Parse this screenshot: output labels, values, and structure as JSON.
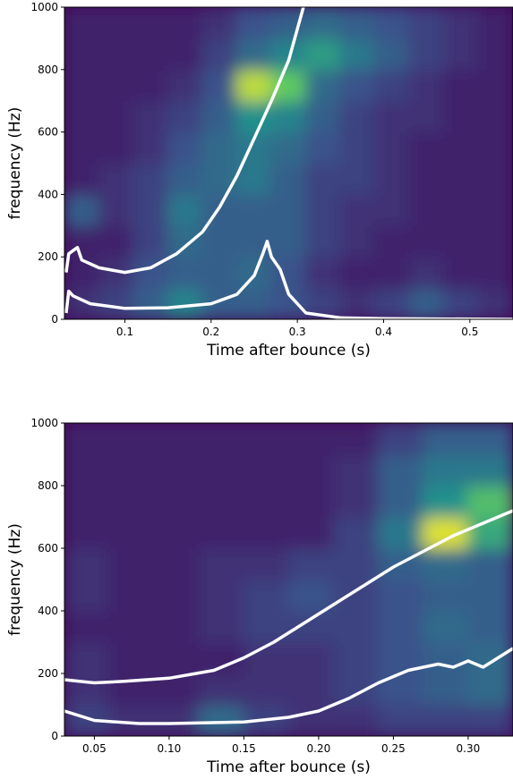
{
  "chart_data": [
    {
      "type": "heatmap",
      "colormap": "viridis",
      "xlabel": "Time after bounce (s)",
      "ylabel": "frequency (Hz)",
      "xlim": [
        0.03,
        0.55
      ],
      "ylim": [
        0,
        1000
      ],
      "xticks": [
        0.1,
        0.2,
        0.3,
        0.4,
        0.5
      ],
      "yticks": [
        0,
        200,
        400,
        600,
        800,
        1000
      ],
      "z": [
        [
          0.15,
          0.2,
          0.3,
          0.45,
          0.3,
          0.3,
          0.25,
          0.2,
          0.15,
          0.2,
          0.3,
          0.2,
          0.15
        ],
        [
          0.1,
          0.15,
          0.25,
          0.3,
          0.3,
          0.35,
          0.25,
          0.15,
          0.1,
          0.1,
          0.15,
          0.1,
          0.1
        ],
        [
          0.1,
          0.1,
          0.2,
          0.35,
          0.3,
          0.3,
          0.3,
          0.2,
          0.15,
          0.1,
          0.1,
          0.1,
          0.1
        ],
        [
          0.3,
          0.15,
          0.2,
          0.4,
          0.3,
          0.3,
          0.3,
          0.2,
          0.15,
          0.15,
          0.1,
          0.1,
          0.1
        ],
        [
          0.1,
          0.15,
          0.2,
          0.3,
          0.35,
          0.4,
          0.3,
          0.2,
          0.2,
          0.15,
          0.1,
          0.1,
          0.1
        ],
        [
          0.1,
          0.1,
          0.15,
          0.25,
          0.35,
          0.4,
          0.35,
          0.25,
          0.2,
          0.15,
          0.1,
          0.1,
          0.1
        ],
        [
          0.1,
          0.1,
          0.15,
          0.2,
          0.3,
          0.5,
          0.45,
          0.3,
          0.2,
          0.15,
          0.15,
          0.1,
          0.1
        ],
        [
          0.1,
          0.1,
          0.1,
          0.15,
          0.25,
          0.9,
          0.75,
          0.35,
          0.25,
          0.2,
          0.15,
          0.1,
          0.1
        ],
        [
          0.1,
          0.1,
          0.1,
          0.1,
          0.2,
          0.35,
          0.45,
          0.55,
          0.4,
          0.3,
          0.2,
          0.15,
          0.1
        ],
        [
          0.1,
          0.1,
          0.1,
          0.1,
          0.15,
          0.25,
          0.3,
          0.35,
          0.3,
          0.25,
          0.2,
          0.15,
          0.1
        ]
      ],
      "lines": [
        {
          "color": "#ffffff",
          "x": [
            0.032,
            0.035,
            0.04,
            0.045,
            0.05,
            0.07,
            0.1,
            0.13,
            0.16,
            0.19,
            0.21,
            0.23,
            0.25,
            0.27,
            0.29,
            0.307
          ],
          "values": [
            150,
            210,
            220,
            230,
            190,
            165,
            150,
            165,
            210,
            280,
            360,
            460,
            580,
            700,
            830,
            1000
          ]
        },
        {
          "color": "#ffffff",
          "x": [
            0.032,
            0.035,
            0.04,
            0.06,
            0.1,
            0.15,
            0.2,
            0.23,
            0.25,
            0.26,
            0.265,
            0.27,
            0.28,
            0.29,
            0.31,
            0.35,
            0.4,
            0.55
          ],
          "values": [
            20,
            90,
            75,
            50,
            35,
            37,
            50,
            80,
            140,
            210,
            250,
            200,
            160,
            80,
            20,
            5,
            2,
            0
          ]
        }
      ]
    },
    {
      "type": "heatmap",
      "colormap": "viridis",
      "xlabel": "Time after bounce (s)",
      "ylabel": "frequency (Hz)",
      "xlim": [
        0.03,
        0.33
      ],
      "ylim": [
        0,
        1000
      ],
      "xticks": [
        0.05,
        {
          "value": 0.1,
          "label": "0.10"
        },
        0.15,
        {
          "value": 0.2,
          "label": "0.20"
        },
        0.25,
        {
          "value": 0.3,
          "label": "0.30"
        }
      ],
      "yticks": [
        0,
        200,
        400,
        600,
        800,
        1000
      ],
      "z": [
        [
          0.2,
          0.15,
          0.15,
          0.35,
          0.2,
          0.15,
          0.15,
          0.2,
          0.2,
          0.2
        ],
        [
          0.15,
          0.1,
          0.1,
          0.15,
          0.15,
          0.15,
          0.2,
          0.25,
          0.3,
          0.35
        ],
        [
          0.15,
          0.1,
          0.1,
          0.1,
          0.15,
          0.15,
          0.2,
          0.25,
          0.3,
          0.35
        ],
        [
          0.1,
          0.1,
          0.1,
          0.15,
          0.2,
          0.2,
          0.2,
          0.25,
          0.35,
          0.3
        ],
        [
          0.15,
          0.1,
          0.1,
          0.15,
          0.2,
          0.25,
          0.2,
          0.25,
          0.3,
          0.3
        ],
        [
          0.15,
          0.1,
          0.1,
          0.15,
          0.15,
          0.2,
          0.2,
          0.3,
          0.35,
          0.3
        ],
        [
          0.1,
          0.1,
          0.1,
          0.1,
          0.1,
          0.1,
          0.2,
          0.4,
          0.95,
          0.6
        ],
        [
          0.1,
          0.1,
          0.1,
          0.1,
          0.1,
          0.1,
          0.15,
          0.3,
          0.5,
          0.7
        ],
        [
          0.1,
          0.1,
          0.1,
          0.1,
          0.1,
          0.1,
          0.15,
          0.3,
          0.4,
          0.4
        ],
        [
          0.1,
          0.1,
          0.1,
          0.1,
          0.1,
          0.1,
          0.1,
          0.2,
          0.3,
          0.3
        ]
      ],
      "lines": [
        {
          "color": "#ffffff",
          "x": [
            0.03,
            0.05,
            0.07,
            0.1,
            0.13,
            0.15,
            0.17,
            0.19,
            0.21,
            0.23,
            0.25,
            0.27,
            0.29,
            0.31,
            0.33
          ],
          "values": [
            180,
            170,
            175,
            185,
            210,
            250,
            300,
            360,
            420,
            480,
            540,
            590,
            640,
            680,
            720
          ]
        },
        {
          "color": "#ffffff",
          "x": [
            0.03,
            0.05,
            0.08,
            0.1,
            0.15,
            0.18,
            0.2,
            0.22,
            0.24,
            0.26,
            0.28,
            0.29,
            0.3,
            0.31,
            0.32,
            0.33
          ],
          "values": [
            80,
            50,
            40,
            40,
            45,
            60,
            80,
            120,
            170,
            210,
            230,
            220,
            240,
            220,
            250,
            280
          ]
        }
      ]
    }
  ]
}
